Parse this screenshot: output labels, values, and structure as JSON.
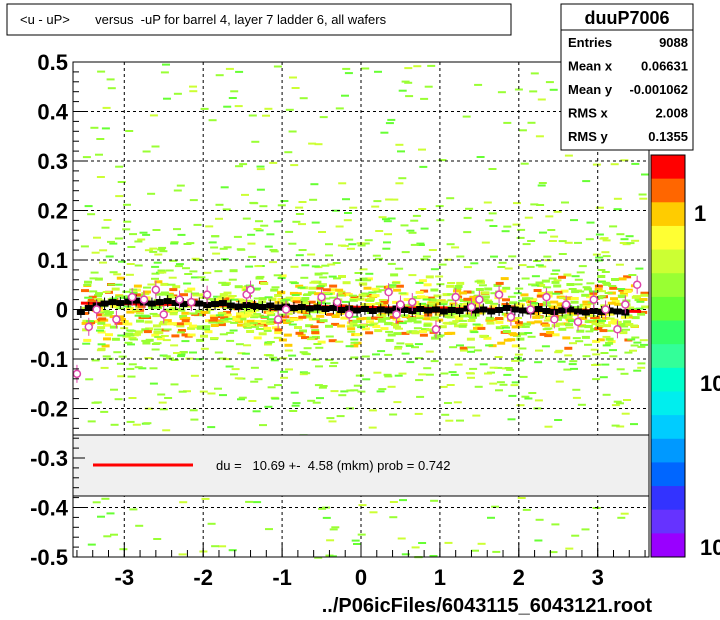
{
  "header": {
    "title": "<u - uP>       versus  -uP for barrel 4, layer 7 ladder 6, all wafers"
  },
  "stats_box": {
    "name": "duuP7006",
    "rows": [
      {
        "label": "Entries",
        "value": "9088"
      },
      {
        "label": "Mean x",
        "value": "0.06631"
      },
      {
        "label": "Mean y",
        "value": "-0.001062"
      },
      {
        "label": "RMS x",
        "value": "2.008"
      },
      {
        "label": "RMS y",
        "value": "0.1355"
      }
    ]
  },
  "fit_legend": {
    "text": "du =   10.69 +-  4.58 (mkm) prob = 0.742",
    "line_color": "#ff0000"
  },
  "footer": {
    "filename": "../P06icFiles/6043115_6043121.root"
  },
  "palette": {
    "labels": [
      "1",
      "10",
      "10"
    ],
    "colors": [
      "#ff0000",
      "#ff6600",
      "#ffcc00",
      "#ffff33",
      "#ccff33",
      "#99ff33",
      "#66ff33",
      "#33ff66",
      "#33ff99",
      "#00ffcc",
      "#00eeee",
      "#00ccff",
      "#0099ff",
      "#0066ff",
      "#3333ff",
      "#6633ff",
      "#9900ff"
    ]
  },
  "chart_data": {
    "type": "scatter",
    "title": "<u - uP>       versus  -uP for barrel 4, layer 7 ladder 6, all wafers",
    "xlabel": "../P06icFiles/6043115_6043121.root",
    "ylabel": "",
    "xlim": [
      -3.65,
      3.65
    ],
    "ylim": [
      -0.5,
      0.5
    ],
    "x_ticks": [
      -3,
      -2,
      -1,
      0,
      1,
      2,
      3
    ],
    "x_tick_labels": [
      "-3",
      "-2",
      "-1",
      "0",
      "1",
      "2",
      "3"
    ],
    "y_ticks": [
      0.5,
      0.4,
      0.3,
      0.2,
      0.1,
      0,
      -0.1,
      -0.2,
      -0.3,
      -0.4,
      -0.5
    ],
    "y_tick_labels": [
      "0.5",
      "0.4",
      "0.3",
      "0.2",
      "0.1",
      "0",
      "-0.1",
      "-0.2",
      "-0.3",
      "-0.4",
      "-0.5"
    ],
    "grid": true,
    "series": [
      {
        "name": "profile",
        "color": "#000000",
        "x": [
          -3.55,
          -3.45,
          -3.35,
          -3.25,
          -3.15,
          -3.05,
          -2.95,
          -2.85,
          -2.75,
          -2.65,
          -2.55,
          -2.45,
          -2.35,
          -2.25,
          -2.15,
          -2.05,
          -1.95,
          -1.85,
          -1.75,
          -1.65,
          -1.55,
          -1.45,
          -1.35,
          -1.25,
          -1.15,
          -1.05,
          -0.95,
          -0.85,
          -0.75,
          -0.65,
          -0.55,
          -0.45,
          -0.35,
          -0.25,
          -0.15,
          -0.05,
          0.05,
          0.15,
          0.25,
          0.35,
          0.45,
          0.55,
          0.65,
          0.75,
          0.85,
          0.95,
          1.05,
          1.15,
          1.25,
          1.35,
          1.45,
          1.55,
          1.65,
          1.75,
          1.85,
          1.95,
          2.05,
          2.15,
          2.25,
          2.35,
          2.45,
          2.55,
          2.65,
          2.75,
          2.85,
          2.95,
          3.05,
          3.15,
          3.25,
          3.35
        ],
        "y": [
          -0.005,
          0.003,
          0.008,
          0.012,
          0.015,
          0.013,
          0.016,
          0.018,
          0.014,
          0.012,
          0.015,
          0.017,
          0.013,
          0.011,
          0.014,
          0.012,
          0.009,
          0.011,
          0.013,
          0.008,
          0.006,
          0.009,
          0.007,
          0.005,
          0.008,
          0.004,
          0.006,
          0.003,
          0.005,
          0.002,
          0.004,
          0.001,
          0.003,
          -0.001,
          0.002,
          -0.002,
          0.001,
          -0.003,
          0.0,
          -0.002,
          0.002,
          -0.001,
          -0.003,
          0.001,
          -0.002,
          0.0,
          -0.004,
          -0.001,
          -0.003,
          0.002,
          -0.002,
          0.0,
          -0.004,
          -0.001,
          0.003,
          0.0,
          -0.002,
          -0.004,
          0.001,
          -0.003,
          -0.005,
          -0.002,
          0.0,
          -0.004,
          -0.006,
          -0.003,
          -0.005,
          -0.002,
          -0.004,
          -0.006
        ]
      },
      {
        "name": "fit",
        "color": "#ff0000",
        "x": [
          -3.55,
          3.55
        ],
        "y": [
          0.013,
          -0.004
        ]
      }
    ],
    "outliers": {
      "color": "#dd44aa",
      "x": [
        -3.6,
        -3.45,
        -3.35,
        -3.1,
        -2.9,
        -2.75,
        -2.6,
        -2.5,
        -2.3,
        -2.15,
        -1.95,
        -1.45,
        -1.4,
        -1.05,
        -0.95,
        -0.5,
        -0.3,
        -0.15,
        0.35,
        0.45,
        0.5,
        0.65,
        0.95,
        1.2,
        1.4,
        1.5,
        1.75,
        1.9,
        2.15,
        2.35,
        2.45,
        2.6,
        2.75,
        2.95,
        3.1,
        3.25,
        3.35,
        3.5
      ],
      "y": [
        -0.13,
        -0.035,
        0.0,
        -0.02,
        0.025,
        0.02,
        0.04,
        -0.01,
        0.02,
        0.015,
        0.03,
        0.03,
        0.04,
        -0.02,
        0.0,
        0.025,
        0.015,
        -0.01,
        0.035,
        -0.01,
        0.01,
        0.015,
        -0.04,
        0.025,
        0.005,
        0.02,
        0.03,
        -0.015,
        0.0,
        0.025,
        -0.02,
        0.01,
        -0.025,
        0.02,
        0.0,
        -0.04,
        0.01,
        0.05
      ]
    }
  }
}
